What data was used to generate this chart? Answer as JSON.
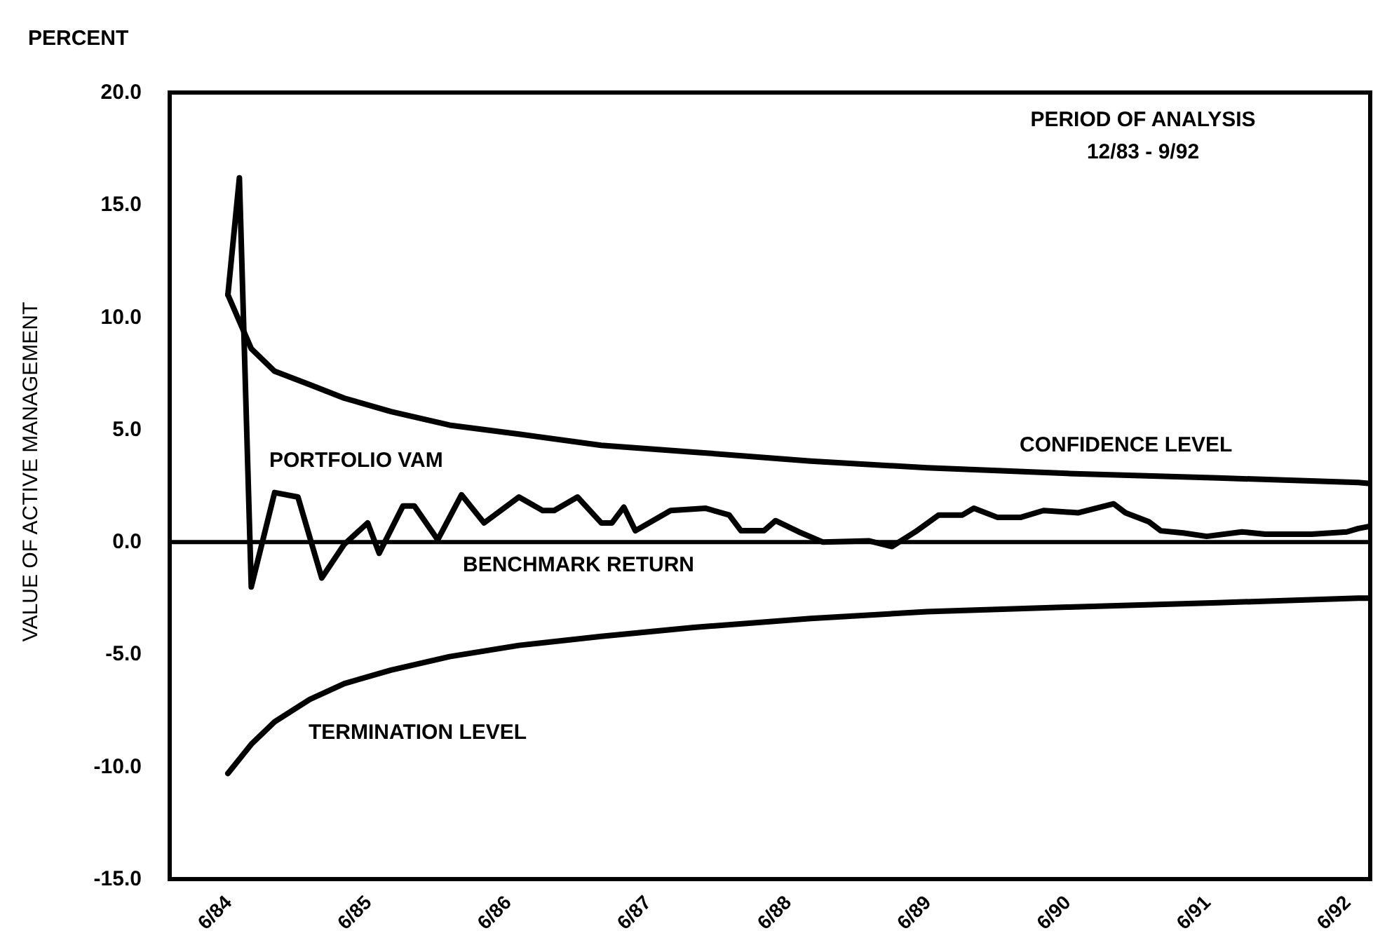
{
  "chart_data": {
    "type": "line",
    "ylabel": "VALUE OF ACTIVE MANAGEMENT",
    "annotations": [
      "PERCENT",
      "PERIOD OF ANALYSIS",
      "12/83 - 9/92"
    ],
    "xlim": [
      "1984-01",
      "1992-08"
    ],
    "xticks": [
      {
        "value": "1984-06",
        "label": "6/84"
      },
      {
        "value": "1985-06",
        "label": "6/85"
      },
      {
        "value": "1986-06",
        "label": "6/86"
      },
      {
        "value": "1987-06",
        "label": "6/87"
      },
      {
        "value": "1988-06",
        "label": "6/88"
      },
      {
        "value": "1989-06",
        "label": "6/89"
      },
      {
        "value": "1990-06",
        "label": "6/90"
      },
      {
        "value": "1991-06",
        "label": "6/91"
      },
      {
        "value": "1992-06",
        "label": "6/92"
      }
    ],
    "ylim": [
      -15,
      20
    ],
    "yticks": [
      {
        "value": 20,
        "label": "20.0"
      },
      {
        "value": 15,
        "label": "15.0"
      },
      {
        "value": 10,
        "label": "10.0"
      },
      {
        "value": 5,
        "label": "5.0"
      },
      {
        "value": 0,
        "label": "0.0"
      },
      {
        "value": -5,
        "label": "-5.0"
      },
      {
        "value": -10,
        "label": "-10.0"
      },
      {
        "value": -15,
        "label": "-15.0"
      }
    ],
    "grid": false,
    "marker": "none",
    "line_style": "solid",
    "ref_lines": [
      {
        "axis": "y",
        "value": 0,
        "label": "BENCHMARK RETURN",
        "color": "#000000"
      }
    ],
    "series": [
      {
        "name": "PORTFOLIO VAM",
        "color": "#000000",
        "x": [
          "1984-06",
          "1984-07",
          "1984-08",
          "1984-10",
          "1984-12",
          "1985-02",
          "1985-04",
          "1985-06",
          "1985-07",
          "1985-09",
          "1985-10",
          "1985-12",
          "1986-02",
          "1986-04",
          "1986-07",
          "1986-09",
          "1986-10",
          "1986-12",
          "1987-02",
          "1987-03",
          "1987-04",
          "1987-05",
          "1987-08",
          "1987-11",
          "1988-01",
          "1988-02",
          "1988-04",
          "1988-05",
          "1988-07",
          "1988-09",
          "1989-01",
          "1989-03",
          "1989-05",
          "1989-07",
          "1989-09",
          "1989-10",
          "1989-12",
          "1990-02",
          "1990-04",
          "1990-07",
          "1990-10",
          "1990-11",
          "1991-01",
          "1991-02",
          "1991-04",
          "1991-06",
          "1991-09",
          "1991-11",
          "1992-03",
          "1992-06",
          "1992-07",
          "1992-08"
        ],
        "values": [
          11,
          16.2,
          -2,
          2.2,
          2,
          -1.6,
          -0.1,
          0.85,
          -0.5,
          1.6,
          1.6,
          0.1,
          2.1,
          0.85,
          2,
          1.4,
          1.4,
          2,
          0.85,
          0.85,
          1.55,
          0.5,
          1.4,
          1.5,
          1.2,
          0.5,
          0.5,
          0.95,
          0.45,
          0,
          0.05,
          -0.2,
          0.45,
          1.2,
          1.2,
          1.5,
          1.1,
          1.1,
          1.4,
          1.3,
          1.7,
          1.3,
          0.9,
          0.5,
          0.4,
          0.25,
          0.45,
          0.35,
          0.35,
          0.45,
          0.6,
          0.7
        ]
      },
      {
        "name": "CONFIDENCE LEVEL",
        "color": "#000000",
        "x": [
          "1984-06",
          "1984-08",
          "1984-10",
          "1985-01",
          "1985-04",
          "1985-08",
          "1986-01",
          "1986-07",
          "1987-02",
          "1987-10",
          "1988-08",
          "1989-06",
          "1990-06",
          "1991-07",
          "1992-07",
          "1992-08"
        ],
        "values": [
          11,
          8.6,
          7.6,
          7,
          6.4,
          5.8,
          5.2,
          4.8,
          4.3,
          4,
          3.6,
          3.3,
          3.05,
          2.85,
          2.65,
          2.6
        ]
      },
      {
        "name": "TERMINATION LEVEL",
        "color": "#000000",
        "x": [
          "1984-06",
          "1984-08",
          "1984-10",
          "1985-01",
          "1985-04",
          "1985-08",
          "1986-01",
          "1986-07",
          "1987-02",
          "1987-10",
          "1988-08",
          "1989-06",
          "1990-06",
          "1991-07",
          "1992-07",
          "1992-08"
        ],
        "values": [
          -10.3,
          -9,
          -8,
          -7,
          -6.3,
          -5.7,
          -5.1,
          -4.6,
          -4.2,
          -3.8,
          -3.4,
          -3.1,
          -2.9,
          -2.7,
          -2.5,
          -2.5
        ]
      }
    ]
  }
}
